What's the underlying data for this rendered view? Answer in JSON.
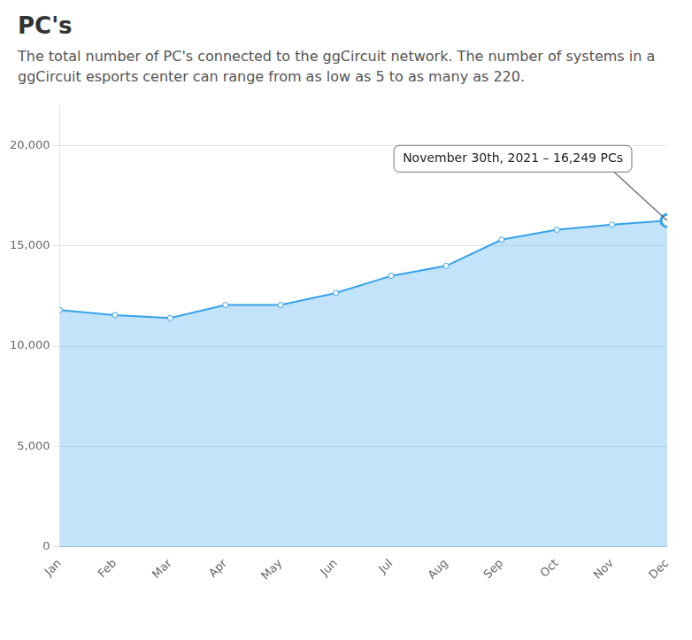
{
  "chart_data": {
    "type": "area",
    "title": "PC's",
    "subtitle": "The total number of PC's connected to the ggCircuit network. The number of systems in a ggCircuit esports center can range from as low as 5 to as many as 220.",
    "categories": [
      "Jan",
      "Feb",
      "Mar",
      "Apr",
      "May",
      "Jun",
      "Jul",
      "Aug",
      "Sep",
      "Oct",
      "Nov",
      "Dec"
    ],
    "values": [
      11800,
      11550,
      11400,
      12050,
      12050,
      12650,
      13500,
      14000,
      15300,
      15800,
      16050,
      16249
    ],
    "ylim": [
      0,
      22000
    ],
    "yticks": [
      0,
      {
        "value": 5000,
        "label": "5,000"
      },
      {
        "value": 10000,
        "label": "10,000"
      },
      {
        "value": 15000,
        "label": "15,000"
      },
      {
        "value": 20000,
        "label": "20,000"
      }
    ],
    "grid": true,
    "annotations": [
      {
        "text": "November 30th, 2021 – 16,249 PCs",
        "category": "Dec",
        "value": 16249
      }
    ]
  }
}
